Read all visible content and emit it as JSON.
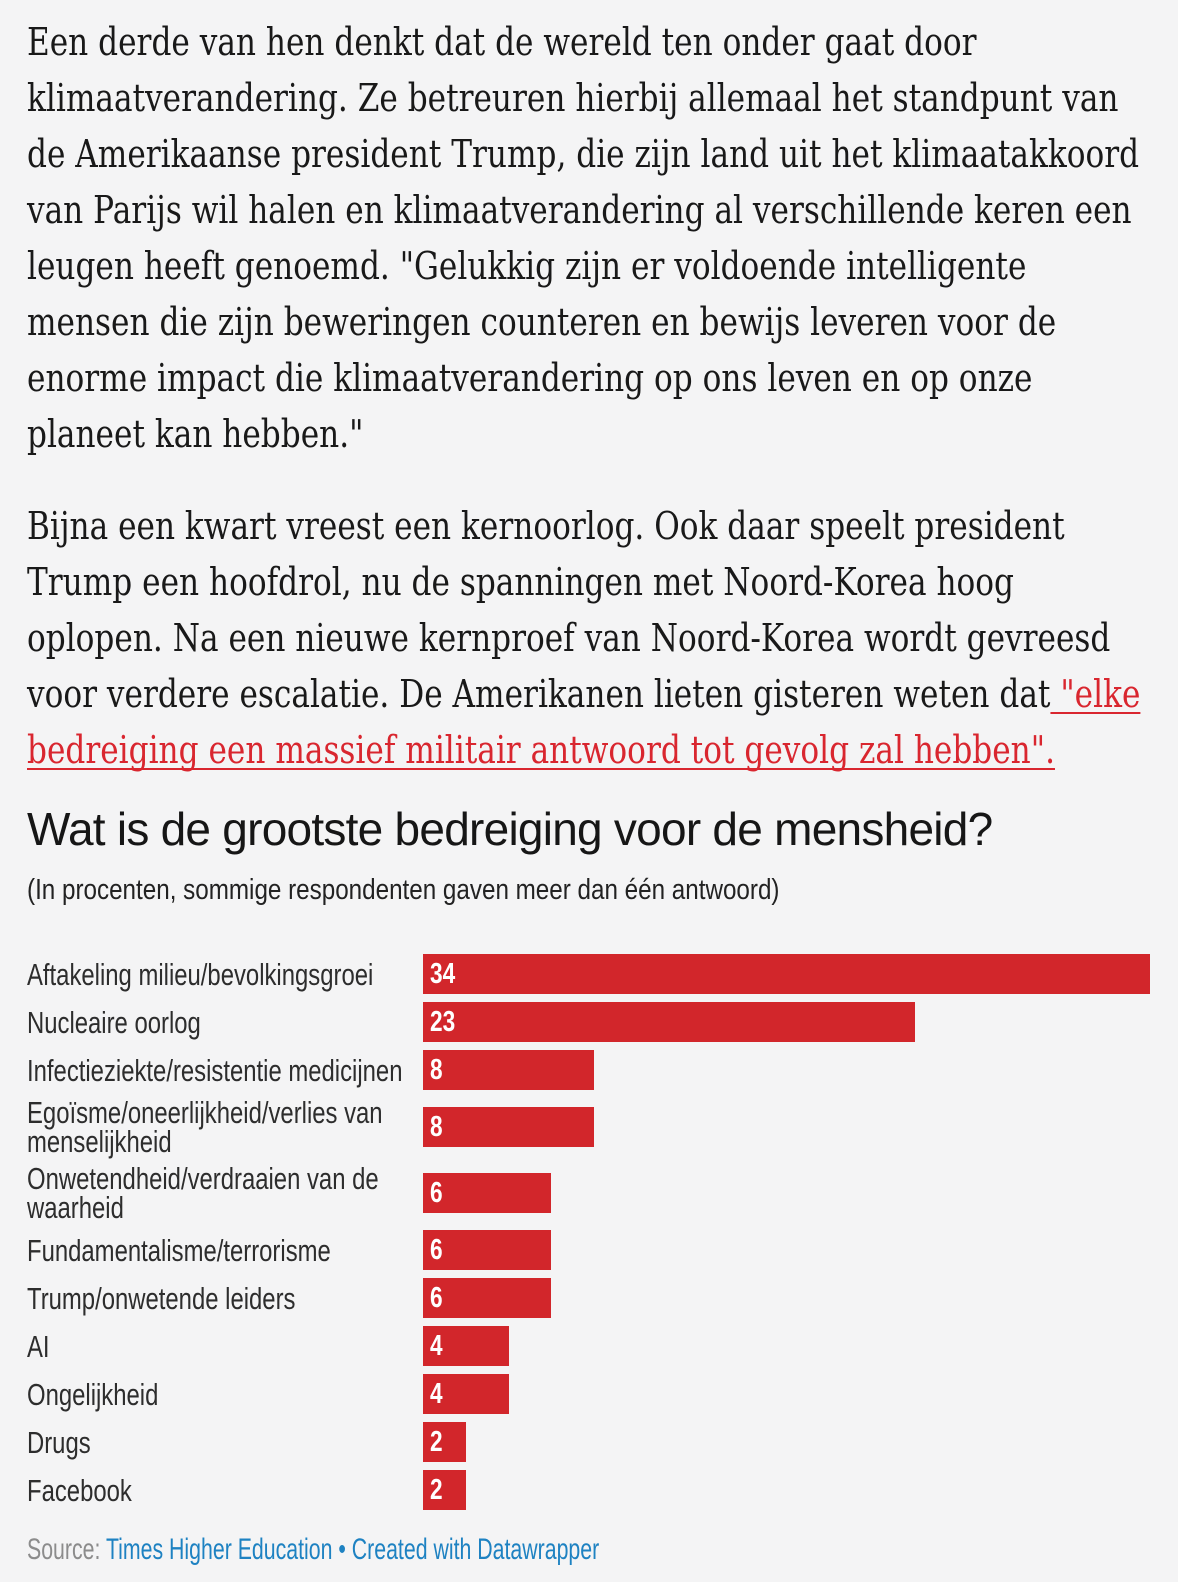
{
  "page": {
    "background": "#f4f4f5"
  },
  "article": {
    "paragraph1": "Een derde van hen denkt dat de wereld ten onder gaat door klimaatverandering. Ze betreuren hierbij allemaal het standpunt van de Amerikaanse president Trump, die zijn land uit het klimaatakkoord van Parijs wil halen en klimaatverandering al verschillende keren een leugen heeft genoemd. \"Gelukkig zijn er voldoende intelligente mensen die zijn beweringen counteren en bewijs leveren voor de enorme impact die klimaatverandering op ons leven en op onze planeet kan hebben.\"",
    "paragraph2_text": "Bijna een kwart vreest een kernoorlog. Ook daar speelt president Trump een hoofdrol, nu de spanningen met Noord-Korea hoog oplopen. Na een nieuwe kernproef van Noord-Korea wordt gevreesd voor verdere escalatie. De Amerikanen lieten gisteren weten dat",
    "paragraph2_link": " \"elke bedreiging een massief militair antwoord tot gevolg zal hebben\".",
    "link_color": "#d9262f"
  },
  "chart_data": {
    "type": "bar",
    "orientation": "horizontal",
    "title": "Wat is de grootste bedreiging voor de mensheid?",
    "subtitle": "(In procenten, sommige respondenten gaven meer dan één antwoord)",
    "categories": [
      "Aftakeling milieu/bevolkingsgroei",
      "Nucleaire oorlog",
      "Infectieziekte/resistentie medicijnen",
      "Egoïsme/oneerlijkheid/verlies van menselijkheid",
      "Onwetendheid/verdraaien van de waarheid",
      "Fundamentalisme/terrorisme",
      "Trump/onwetende leiders",
      "AI",
      "Ongelijkheid",
      "Drugs",
      "Facebook"
    ],
    "values": [
      34,
      23,
      8,
      8,
      6,
      6,
      6,
      4,
      4,
      2,
      2
    ],
    "xlim": [
      0,
      34
    ],
    "bar_color": "#d2262b",
    "value_label_color": "#ffffff",
    "source_label": "Source:",
    "source_name": "Times Higher Education",
    "separator": "•",
    "credit": "Created with Datawrapper",
    "footer_link_color": "#1e82c2"
  }
}
